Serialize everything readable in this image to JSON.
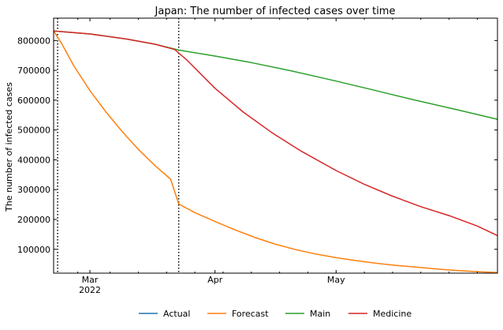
{
  "chart_data": {
    "type": "line",
    "title": "Japan: The number of infected cases over time",
    "xlabel": "",
    "ylabel": "The number of infected cases",
    "x_range": [
      "2022-02-20",
      "2022-06-10"
    ],
    "ylim": [
      20000,
      875000
    ],
    "y_ticks": [
      100000,
      200000,
      300000,
      400000,
      500000,
      600000,
      700000,
      800000
    ],
    "y_tick_labels": [
      "100000",
      "200000",
      "300000",
      "400000",
      "500000",
      "600000",
      "700000",
      "800000"
    ],
    "x_ticks": [
      {
        "date": "2022-03-01",
        "label": "Mar",
        "sublabel": "2022"
      },
      {
        "date": "2022-04-01",
        "label": "Apr",
        "sublabel": ""
      },
      {
        "date": "2022-05-01",
        "label": "May",
        "sublabel": ""
      }
    ],
    "x_minor_ticks": [
      "2022-02-26",
      "2022-03-06",
      "2022-03-13",
      "2022-03-20",
      "2022-03-27",
      "2022-04-03",
      "2022-04-10",
      "2022-04-17",
      "2022-04-24",
      "2022-05-08",
      "2022-05-15",
      "2022-05-22",
      "2022-05-29",
      "2022-06-05"
    ],
    "vlines": [
      "2022-02-21",
      "2022-03-23"
    ],
    "legend_position": "bottom-center",
    "grid": false,
    "series": [
      {
        "name": "Actual",
        "color": "#1f77b4",
        "points": []
      },
      {
        "name": "Forecast",
        "color": "#ff7f0e",
        "points": [
          [
            "2022-02-20",
            832000
          ],
          [
            "2022-02-22",
            790000
          ],
          [
            "2022-02-25",
            715000
          ],
          [
            "2022-03-01",
            632000
          ],
          [
            "2022-03-05",
            560000
          ],
          [
            "2022-03-09",
            495000
          ],
          [
            "2022-03-13",
            435000
          ],
          [
            "2022-03-17",
            382000
          ],
          [
            "2022-03-21",
            335000
          ],
          [
            "2022-03-23",
            252000
          ],
          [
            "2022-03-23",
            252000
          ],
          [
            "2022-03-27",
            223000
          ],
          [
            "2022-04-01",
            193000
          ],
          [
            "2022-04-06",
            165000
          ],
          [
            "2022-04-11",
            139000
          ],
          [
            "2022-04-16",
            117000
          ],
          [
            "2022-04-21",
            99000
          ],
          [
            "2022-04-26",
            84000
          ],
          [
            "2022-05-01",
            72000
          ],
          [
            "2022-05-06",
            62000
          ],
          [
            "2022-05-11",
            53000
          ],
          [
            "2022-05-16",
            46000
          ],
          [
            "2022-05-21",
            40000
          ],
          [
            "2022-05-26",
            34000
          ],
          [
            "2022-05-31",
            29000
          ],
          [
            "2022-06-05",
            25000
          ],
          [
            "2022-06-10",
            22000
          ]
        ]
      },
      {
        "name": "Main",
        "color": "#2ca02c",
        "points": [
          [
            "2022-02-20",
            832000
          ],
          [
            "2022-03-01",
            822000
          ],
          [
            "2022-03-10",
            805000
          ],
          [
            "2022-03-17",
            788000
          ],
          [
            "2022-03-23",
            768000
          ],
          [
            "2022-04-01",
            748000
          ],
          [
            "2022-04-10",
            726000
          ],
          [
            "2022-04-20",
            698000
          ],
          [
            "2022-05-01",
            664000
          ],
          [
            "2022-05-10",
            635000
          ],
          [
            "2022-05-20",
            602000
          ],
          [
            "2022-05-31",
            568000
          ],
          [
            "2022-06-10",
            536000
          ]
        ]
      },
      {
        "name": "Medicine",
        "color": "#d62728",
        "points": [
          [
            "2022-02-20",
            832000
          ],
          [
            "2022-03-01",
            822000
          ],
          [
            "2022-03-10",
            805000
          ],
          [
            "2022-03-17",
            788000
          ],
          [
            "2022-03-22",
            770000
          ],
          [
            "2022-03-25",
            735000
          ],
          [
            "2022-04-01",
            640000
          ],
          [
            "2022-04-08",
            560000
          ],
          [
            "2022-04-15",
            492000
          ],
          [
            "2022-04-22",
            432000
          ],
          [
            "2022-05-01",
            364000
          ],
          [
            "2022-05-08",
            318000
          ],
          [
            "2022-05-15",
            278000
          ],
          [
            "2022-05-22",
            243000
          ],
          [
            "2022-05-29",
            213000
          ],
          [
            "2022-06-05",
            178000
          ],
          [
            "2022-06-10",
            146000
          ]
        ]
      }
    ]
  }
}
